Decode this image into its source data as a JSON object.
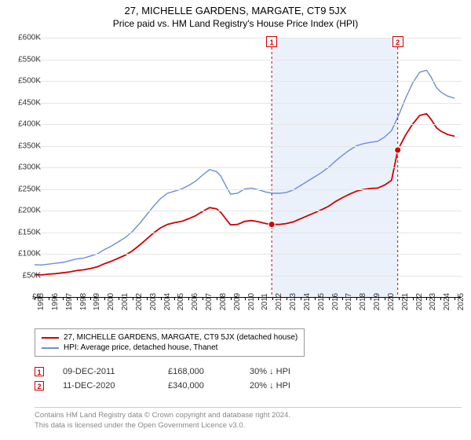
{
  "title": "27, MICHELLE GARDENS, MARGATE, CT9 5JX",
  "subtitle": "Price paid vs. HM Land Registry's House Price Index (HPI)",
  "chart": {
    "type": "line",
    "background_color": "#ffffff",
    "grid_color": "#e5e5e5",
    "x_years": [
      1995,
      1996,
      1997,
      1998,
      1999,
      2000,
      2001,
      2002,
      2003,
      2004,
      2005,
      2006,
      2007,
      2008,
      2009,
      2010,
      2011,
      2012,
      2013,
      2014,
      2015,
      2016,
      2017,
      2018,
      2019,
      2020,
      2021,
      2022,
      2023,
      2024,
      2025
    ],
    "x_min": 1995,
    "x_max": 2025.5,
    "y_min": 0,
    "y_max": 600000,
    "y_ticks": [
      0,
      50000,
      100000,
      150000,
      200000,
      250000,
      300000,
      350000,
      400000,
      450000,
      500000,
      550000,
      600000
    ],
    "y_tick_labels": [
      "£0",
      "£50K",
      "£100K",
      "£150K",
      "£200K",
      "£250K",
      "£300K",
      "£350K",
      "£400K",
      "£450K",
      "£500K",
      "£550K",
      "£600K"
    ],
    "shade_start_year": 2011.94,
    "shade_end_year": 2020.94,
    "series": [
      {
        "name": "hpi",
        "label": "HPI: Average price, detached house, Thanet",
        "color": "#6b8fd4",
        "width": 1.4,
        "points_year_value": [
          [
            1995,
            75000
          ],
          [
            1995.5,
            74000
          ],
          [
            1996,
            76000
          ],
          [
            1996.5,
            78000
          ],
          [
            1997,
            80000
          ],
          [
            1997.5,
            84000
          ],
          [
            1998,
            88000
          ],
          [
            1998.5,
            90000
          ],
          [
            1999,
            95000
          ],
          [
            1999.5,
            100000
          ],
          [
            2000,
            110000
          ],
          [
            2000.5,
            118000
          ],
          [
            2001,
            128000
          ],
          [
            2001.5,
            138000
          ],
          [
            2002,
            152000
          ],
          [
            2002.5,
            170000
          ],
          [
            2003,
            190000
          ],
          [
            2003.5,
            210000
          ],
          [
            2004,
            228000
          ],
          [
            2004.5,
            240000
          ],
          [
            2005,
            245000
          ],
          [
            2005.5,
            250000
          ],
          [
            2006,
            258000
          ],
          [
            2006.5,
            268000
          ],
          [
            2007,
            282000
          ],
          [
            2007.5,
            295000
          ],
          [
            2008,
            290000
          ],
          [
            2008.3,
            280000
          ],
          [
            2008.7,
            255000
          ],
          [
            2009,
            238000
          ],
          [
            2009.5,
            240000
          ],
          [
            2010,
            250000
          ],
          [
            2010.5,
            252000
          ],
          [
            2011,
            248000
          ],
          [
            2011.5,
            243000
          ],
          [
            2012,
            240000
          ],
          [
            2012.5,
            240000
          ],
          [
            2013,
            242000
          ],
          [
            2013.5,
            248000
          ],
          [
            2014,
            258000
          ],
          [
            2014.5,
            268000
          ],
          [
            2015,
            278000
          ],
          [
            2015.5,
            288000
          ],
          [
            2016,
            300000
          ],
          [
            2016.5,
            315000
          ],
          [
            2017,
            328000
          ],
          [
            2017.5,
            340000
          ],
          [
            2018,
            350000
          ],
          [
            2018.5,
            355000
          ],
          [
            2019,
            358000
          ],
          [
            2019.5,
            360000
          ],
          [
            2020,
            370000
          ],
          [
            2020.5,
            385000
          ],
          [
            2021,
            420000
          ],
          [
            2021.5,
            460000
          ],
          [
            2022,
            495000
          ],
          [
            2022.5,
            520000
          ],
          [
            2023,
            525000
          ],
          [
            2023.3,
            510000
          ],
          [
            2023.7,
            485000
          ],
          [
            2024,
            475000
          ],
          [
            2024.5,
            465000
          ],
          [
            2025,
            460000
          ]
        ]
      },
      {
        "name": "property",
        "label": "27, MICHELLE GARDENS, MARGATE, CT9 5JX (detached house)",
        "color": "#d00000",
        "width": 1.8,
        "points_year_value": [
          [
            1995,
            52000
          ],
          [
            1995.5,
            51000
          ],
          [
            1996,
            53000
          ],
          [
            1996.5,
            54000
          ],
          [
            1997,
            56000
          ],
          [
            1997.5,
            58000
          ],
          [
            1998,
            61000
          ],
          [
            1998.5,
            63000
          ],
          [
            1999,
            66000
          ],
          [
            1999.5,
            70000
          ],
          [
            2000,
            77000
          ],
          [
            2000.5,
            83000
          ],
          [
            2001,
            90000
          ],
          [
            2001.5,
            97000
          ],
          [
            2002,
            107000
          ],
          [
            2002.5,
            120000
          ],
          [
            2003,
            134000
          ],
          [
            2003.5,
            148000
          ],
          [
            2004,
            160000
          ],
          [
            2004.5,
            168000
          ],
          [
            2005,
            172000
          ],
          [
            2005.5,
            175000
          ],
          [
            2006,
            181000
          ],
          [
            2006.5,
            188000
          ],
          [
            2007,
            198000
          ],
          [
            2007.5,
            207000
          ],
          [
            2008,
            204000
          ],
          [
            2008.3,
            196000
          ],
          [
            2008.7,
            179000
          ],
          [
            2009,
            167000
          ],
          [
            2009.5,
            168000
          ],
          [
            2010,
            175000
          ],
          [
            2010.5,
            177000
          ],
          [
            2011,
            174000
          ],
          [
            2011.5,
            170000
          ],
          [
            2011.94,
            168000
          ],
          [
            2012.5,
            168000
          ],
          [
            2013,
            170000
          ],
          [
            2013.5,
            174000
          ],
          [
            2014,
            181000
          ],
          [
            2014.5,
            188000
          ],
          [
            2015,
            195000
          ],
          [
            2015.5,
            202000
          ],
          [
            2016,
            210000
          ],
          [
            2016.5,
            221000
          ],
          [
            2017,
            230000
          ],
          [
            2017.5,
            238000
          ],
          [
            2018,
            245000
          ],
          [
            2018.5,
            249000
          ],
          [
            2019,
            251000
          ],
          [
            2019.5,
            252000
          ],
          [
            2020,
            259000
          ],
          [
            2020.5,
            270000
          ],
          [
            2020.94,
            340000
          ],
          [
            2021.5,
            375000
          ],
          [
            2022,
            400000
          ],
          [
            2022.5,
            420000
          ],
          [
            2023,
            424000
          ],
          [
            2023.3,
            412000
          ],
          [
            2023.7,
            392000
          ],
          [
            2024,
            384000
          ],
          [
            2024.5,
            376000
          ],
          [
            2025,
            372000
          ]
        ]
      }
    ],
    "sales": [
      {
        "index": "1",
        "year": 2011.94,
        "value": 168000,
        "date": "09-DEC-2011",
        "price": "£168,000",
        "delta": "30% ↓ HPI",
        "marker_color": "#d00000"
      },
      {
        "index": "2",
        "year": 2020.94,
        "value": 340000,
        "date": "11-DEC-2020",
        "price": "£340,000",
        "delta": "20% ↓ HPI",
        "marker_color": "#d00000"
      }
    ]
  },
  "legend": {
    "items": [
      {
        "color": "#d00000",
        "label": "27, MICHELLE GARDENS, MARGATE, CT9 5JX (detached house)"
      },
      {
        "color": "#6b8fd4",
        "label": "HPI: Average price, detached house, Thanet"
      }
    ]
  },
  "footer_line1": "Contains HM Land Registry data © Crown copyright and database right 2024.",
  "footer_line2": "This data is licensed under the Open Government Licence v3.0."
}
